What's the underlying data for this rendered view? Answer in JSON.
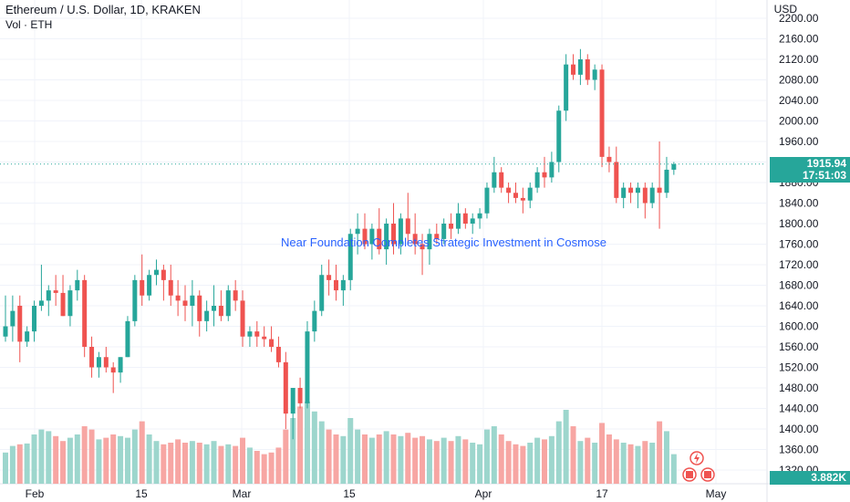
{
  "header": {
    "symbol": "Ethereum / U.S. Dollar, 1D, KRAKEN",
    "vol_label": "Vol · ETH"
  },
  "currency": "USD",
  "price_tag": {
    "price": "1915.94",
    "countdown": "17:51:03"
  },
  "volume_tag": "3.882K",
  "news_banner": "Near Foundation Completes Strategic Investment in Cosmose",
  "colors": {
    "up": "#26a69a",
    "down": "#ef5350",
    "vol_up": "#9dd6cd",
    "vol_down": "#f7a6a3",
    "grid": "#f0f3fa",
    "text": "#131722",
    "news": "#2962ff"
  },
  "chart_data": {
    "type": "candlestick",
    "price_axis": {
      "ticks": [
        1320,
        1360,
        1400,
        1440,
        1480,
        1520,
        1560,
        1600,
        1640,
        1680,
        1720,
        1760,
        1800,
        1840,
        1880,
        1920,
        1960,
        2000,
        2040,
        2080,
        2120,
        2160,
        2200
      ],
      "ylim": [
        1300,
        2220
      ]
    },
    "time_axis": {
      "labels": [
        "Feb",
        "15",
        "Mar",
        "15",
        "Apr",
        "17",
        "May"
      ]
    },
    "last_price": 1915.94,
    "candles": [
      {
        "o": 1580,
        "h": 1660,
        "l": 1570,
        "c": 1600,
        "v": 190
      },
      {
        "o": 1600,
        "h": 1660,
        "l": 1570,
        "c": 1630,
        "v": 230
      },
      {
        "o": 1640,
        "h": 1660,
        "l": 1530,
        "c": 1570,
        "v": 240
      },
      {
        "o": 1570,
        "h": 1600,
        "l": 1560,
        "c": 1590,
        "v": 245
      },
      {
        "o": 1590,
        "h": 1650,
        "l": 1570,
        "c": 1640,
        "v": 300
      },
      {
        "o": 1640,
        "h": 1720,
        "l": 1630,
        "c": 1650,
        "v": 330
      },
      {
        "o": 1650,
        "h": 1680,
        "l": 1620,
        "c": 1670,
        "v": 320
      },
      {
        "o": 1670,
        "h": 1700,
        "l": 1640,
        "c": 1665,
        "v": 290
      },
      {
        "o": 1665,
        "h": 1700,
        "l": 1620,
        "c": 1620,
        "v": 260
      },
      {
        "o": 1620,
        "h": 1680,
        "l": 1600,
        "c": 1670,
        "v": 280
      },
      {
        "o": 1670,
        "h": 1710,
        "l": 1650,
        "c": 1690,
        "v": 300
      },
      {
        "o": 1690,
        "h": 1700,
        "l": 1540,
        "c": 1560,
        "v": 350
      },
      {
        "o": 1560,
        "h": 1580,
        "l": 1500,
        "c": 1520,
        "v": 330
      },
      {
        "o": 1520,
        "h": 1550,
        "l": 1500,
        "c": 1540,
        "v": 270
      },
      {
        "o": 1540,
        "h": 1560,
        "l": 1510,
        "c": 1520,
        "v": 280
      },
      {
        "o": 1520,
        "h": 1530,
        "l": 1470,
        "c": 1510,
        "v": 300
      },
      {
        "o": 1510,
        "h": 1540,
        "l": 1490,
        "c": 1540,
        "v": 290
      },
      {
        "o": 1540,
        "h": 1620,
        "l": 1540,
        "c": 1610,
        "v": 280
      },
      {
        "o": 1610,
        "h": 1700,
        "l": 1600,
        "c": 1690,
        "v": 330
      },
      {
        "o": 1690,
        "h": 1740,
        "l": 1640,
        "c": 1660,
        "v": 380
      },
      {
        "o": 1660,
        "h": 1710,
        "l": 1650,
        "c": 1700,
        "v": 300
      },
      {
        "o": 1700,
        "h": 1730,
        "l": 1680,
        "c": 1710,
        "v": 260
      },
      {
        "o": 1710,
        "h": 1720,
        "l": 1650,
        "c": 1690,
        "v": 240
      },
      {
        "o": 1690,
        "h": 1720,
        "l": 1640,
        "c": 1660,
        "v": 250
      },
      {
        "o": 1660,
        "h": 1690,
        "l": 1620,
        "c": 1650,
        "v": 270
      },
      {
        "o": 1650,
        "h": 1680,
        "l": 1610,
        "c": 1640,
        "v": 250
      },
      {
        "o": 1640,
        "h": 1690,
        "l": 1600,
        "c": 1660,
        "v": 260
      },
      {
        "o": 1660,
        "h": 1670,
        "l": 1580,
        "c": 1610,
        "v": 250
      },
      {
        "o": 1610,
        "h": 1650,
        "l": 1590,
        "c": 1630,
        "v": 240
      },
      {
        "o": 1630,
        "h": 1680,
        "l": 1600,
        "c": 1640,
        "v": 260
      },
      {
        "o": 1640,
        "h": 1670,
        "l": 1610,
        "c": 1620,
        "v": 230
      },
      {
        "o": 1620,
        "h": 1680,
        "l": 1610,
        "c": 1670,
        "v": 240
      },
      {
        "o": 1670,
        "h": 1690,
        "l": 1630,
        "c": 1650,
        "v": 230
      },
      {
        "o": 1650,
        "h": 1670,
        "l": 1560,
        "c": 1580,
        "v": 280
      },
      {
        "o": 1580,
        "h": 1600,
        "l": 1560,
        "c": 1590,
        "v": 220
      },
      {
        "o": 1590,
        "h": 1610,
        "l": 1560,
        "c": 1580,
        "v": 200
      },
      {
        "o": 1580,
        "h": 1600,
        "l": 1560,
        "c": 1575,
        "v": 180
      },
      {
        "o": 1575,
        "h": 1600,
        "l": 1550,
        "c": 1560,
        "v": 190
      },
      {
        "o": 1560,
        "h": 1580,
        "l": 1520,
        "c": 1530,
        "v": 220
      },
      {
        "o": 1530,
        "h": 1550,
        "l": 1400,
        "c": 1430,
        "v": 330
      },
      {
        "o": 1430,
        "h": 1480,
        "l": 1380,
        "c": 1480,
        "v": 400
      },
      {
        "o": 1480,
        "h": 1500,
        "l": 1440,
        "c": 1450,
        "v": 470
      },
      {
        "o": 1450,
        "h": 1610,
        "l": 1440,
        "c": 1590,
        "v": 500
      },
      {
        "o": 1590,
        "h": 1650,
        "l": 1570,
        "c": 1630,
        "v": 440
      },
      {
        "o": 1630,
        "h": 1720,
        "l": 1620,
        "c": 1700,
        "v": 380
      },
      {
        "o": 1700,
        "h": 1730,
        "l": 1660,
        "c": 1690,
        "v": 330
      },
      {
        "o": 1690,
        "h": 1720,
        "l": 1650,
        "c": 1670,
        "v": 300
      },
      {
        "o": 1670,
        "h": 1700,
        "l": 1640,
        "c": 1690,
        "v": 290
      },
      {
        "o": 1690,
        "h": 1790,
        "l": 1670,
        "c": 1780,
        "v": 400
      },
      {
        "o": 1780,
        "h": 1820,
        "l": 1740,
        "c": 1790,
        "v": 330
      },
      {
        "o": 1790,
        "h": 1820,
        "l": 1750,
        "c": 1760,
        "v": 300
      },
      {
        "o": 1760,
        "h": 1800,
        "l": 1730,
        "c": 1790,
        "v": 280
      },
      {
        "o": 1790,
        "h": 1830,
        "l": 1740,
        "c": 1750,
        "v": 300
      },
      {
        "o": 1750,
        "h": 1810,
        "l": 1720,
        "c": 1800,
        "v": 320
      },
      {
        "o": 1800,
        "h": 1840,
        "l": 1740,
        "c": 1760,
        "v": 300
      },
      {
        "o": 1760,
        "h": 1820,
        "l": 1740,
        "c": 1810,
        "v": 290
      },
      {
        "o": 1810,
        "h": 1860,
        "l": 1760,
        "c": 1780,
        "v": 310
      },
      {
        "o": 1780,
        "h": 1820,
        "l": 1740,
        "c": 1760,
        "v": 280
      },
      {
        "o": 1760,
        "h": 1780,
        "l": 1700,
        "c": 1750,
        "v": 290
      },
      {
        "o": 1750,
        "h": 1790,
        "l": 1720,
        "c": 1780,
        "v": 270
      },
      {
        "o": 1780,
        "h": 1800,
        "l": 1760,
        "c": 1770,
        "v": 260
      },
      {
        "o": 1770,
        "h": 1810,
        "l": 1760,
        "c": 1800,
        "v": 280
      },
      {
        "o": 1800,
        "h": 1820,
        "l": 1770,
        "c": 1790,
        "v": 260
      },
      {
        "o": 1790,
        "h": 1840,
        "l": 1780,
        "c": 1820,
        "v": 290
      },
      {
        "o": 1820,
        "h": 1830,
        "l": 1790,
        "c": 1800,
        "v": 270
      },
      {
        "o": 1800,
        "h": 1820,
        "l": 1780,
        "c": 1810,
        "v": 250
      },
      {
        "o": 1810,
        "h": 1830,
        "l": 1790,
        "c": 1820,
        "v": 240
      },
      {
        "o": 1820,
        "h": 1880,
        "l": 1810,
        "c": 1870,
        "v": 330
      },
      {
        "o": 1870,
        "h": 1930,
        "l": 1860,
        "c": 1900,
        "v": 350
      },
      {
        "o": 1900,
        "h": 1910,
        "l": 1860,
        "c": 1870,
        "v": 300
      },
      {
        "o": 1870,
        "h": 1880,
        "l": 1840,
        "c": 1860,
        "v": 260
      },
      {
        "o": 1860,
        "h": 1880,
        "l": 1840,
        "c": 1850,
        "v": 240
      },
      {
        "o": 1850,
        "h": 1870,
        "l": 1820,
        "c": 1845,
        "v": 230
      },
      {
        "o": 1845,
        "h": 1880,
        "l": 1830,
        "c": 1870,
        "v": 250
      },
      {
        "o": 1870,
        "h": 1910,
        "l": 1860,
        "c": 1900,
        "v": 280
      },
      {
        "o": 1900,
        "h": 1930,
        "l": 1870,
        "c": 1890,
        "v": 270
      },
      {
        "o": 1890,
        "h": 1940,
        "l": 1880,
        "c": 1920,
        "v": 290
      },
      {
        "o": 1920,
        "h": 2030,
        "l": 1900,
        "c": 2020,
        "v": 380
      },
      {
        "o": 2020,
        "h": 2130,
        "l": 2000,
        "c": 2110,
        "v": 450
      },
      {
        "o": 2110,
        "h": 2130,
        "l": 2080,
        "c": 2090,
        "v": 350
      },
      {
        "o": 2090,
        "h": 2140,
        "l": 2070,
        "c": 2120,
        "v": 260
      },
      {
        "o": 2120,
        "h": 2130,
        "l": 2070,
        "c": 2080,
        "v": 280
      },
      {
        "o": 2080,
        "h": 2110,
        "l": 2060,
        "c": 2100,
        "v": 250
      },
      {
        "o": 2100,
        "h": 2110,
        "l": 1910,
        "c": 1930,
        "v": 370
      },
      {
        "o": 1930,
        "h": 1950,
        "l": 1900,
        "c": 1920,
        "v": 300
      },
      {
        "o": 1920,
        "h": 1950,
        "l": 1840,
        "c": 1850,
        "v": 270
      },
      {
        "o": 1850,
        "h": 1880,
        "l": 1830,
        "c": 1870,
        "v": 250
      },
      {
        "o": 1870,
        "h": 1880,
        "l": 1840,
        "c": 1860,
        "v": 240
      },
      {
        "o": 1860,
        "h": 1880,
        "l": 1830,
        "c": 1870,
        "v": 230
      },
      {
        "o": 1870,
        "h": 1880,
        "l": 1810,
        "c": 1840,
        "v": 260
      },
      {
        "o": 1840,
        "h": 1880,
        "l": 1830,
        "c": 1870,
        "v": 250
      },
      {
        "o": 1870,
        "h": 1960,
        "l": 1790,
        "c": 1860,
        "v": 380
      },
      {
        "o": 1860,
        "h": 1930,
        "l": 1850,
        "c": 1905,
        "v": 320
      },
      {
        "o": 1905,
        "h": 1920,
        "l": 1895,
        "c": 1916,
        "v": 180
      }
    ]
  }
}
